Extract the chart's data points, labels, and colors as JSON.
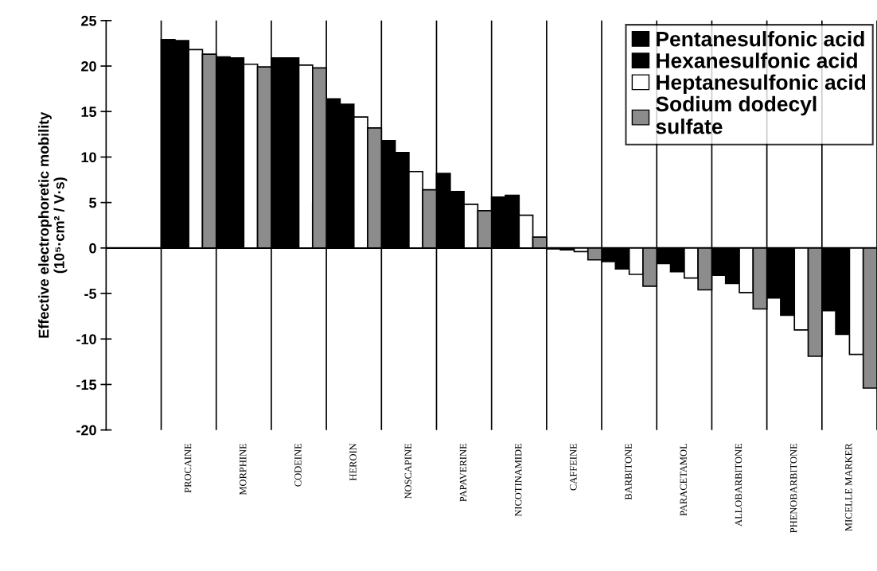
{
  "chart_data": {
    "type": "bar",
    "ylabel": "Effective electrophoretic mobility\n(10⁵·cm² / V·s)",
    "categories": [
      null,
      "PROCAINE",
      "MORPHINE",
      "CODEINE",
      "HEROIN",
      "NOSCAPINE",
      "PAPAVERINE",
      "NICOTINAMIDE",
      "CAFFEINE",
      "BARBITONE",
      "PARACETAMOL",
      "ALLOBARBITONE",
      "PHENOBARBITONE",
      "MICELLE MARKER"
    ],
    "series": [
      {
        "name": "Pentanesulfonic acid",
        "color": "#000000",
        "values": [
          null,
          22.9,
          21.0,
          20.9,
          16.4,
          11.8,
          8.2,
          5.6,
          -0.1,
          -1.5,
          -1.7,
          -3.0,
          -5.5,
          -6.9
        ]
      },
      {
        "name": "Hexanesulfonic acid",
        "color": "#000000",
        "values": [
          null,
          22.8,
          20.9,
          20.9,
          15.8,
          10.5,
          6.2,
          5.8,
          -0.2,
          -2.3,
          -2.6,
          -3.9,
          -7.4,
          -9.5
        ]
      },
      {
        "name": "Heptanesulfonic acid",
        "color": "#ffffff",
        "values": [
          null,
          21.8,
          20.2,
          20.1,
          14.4,
          8.4,
          4.8,
          3.6,
          -0.4,
          -2.9,
          -3.3,
          -4.9,
          -9.0,
          -11.7
        ]
      },
      {
        "name": "Sodium dodecyl\nsulfate",
        "color": "#8c8c8c",
        "values": [
          null,
          21.3,
          19.9,
          19.8,
          13.2,
          6.4,
          4.1,
          1.2,
          -1.3,
          -4.2,
          -4.6,
          -6.7,
          -11.9,
          -15.4
        ]
      }
    ],
    "ylim": [
      -20,
      25
    ],
    "yticks": [
      {
        "value": -20,
        "label": "-20"
      },
      {
        "value": -15,
        "label": "-15"
      },
      {
        "value": -10,
        "label": "-10"
      },
      {
        "value": -5,
        "label": "-5"
      },
      0,
      5,
      10,
      15,
      20,
      25
    ],
    "grid": "x",
    "ref_lines": [
      {
        "axis": "y",
        "value": 0,
        "color": "#000000"
      }
    ],
    "legend": "top right"
  }
}
